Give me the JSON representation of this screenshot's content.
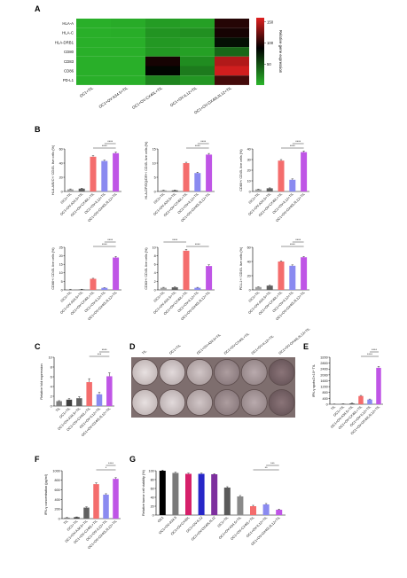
{
  "panel_letters": [
    "A",
    "B",
    "C",
    "D",
    "E",
    "F",
    "G"
  ],
  "colors": {
    "tumor": "#7f7f7f",
    "til": "#404040",
    "oc1_til": "#a0a0a0",
    "ov_a34": "#606060",
    "ov_cx40l": "#f46d6d",
    "ov_il12": "#8a8af0",
    "ov_combo": "#bf55e6",
    "heat_low": "#2ab52a",
    "heat_high": "#e02020",
    "heat_mid": "#000000"
  },
  "chart_data": [
    {
      "id": "A",
      "type": "heatmap",
      "rows": [
        "HLA-A",
        "HLA-C",
        "HLA-DRB1",
        "CD80",
        "CD83",
        "CD86",
        "PD-L1"
      ],
      "columns": [
        "OC1+TIL",
        "OC1+OV-A34.5+TIL",
        "OC1+OV-CX40L+TIL",
        "OC1+OV-IL12+TIL",
        "OC1+OV-OX40L/IL12+TIL"
      ],
      "values": [
        [
          3,
          5,
          12,
          10,
          100
        ],
        [
          3,
          4,
          16,
          18,
          95
        ],
        [
          3,
          3,
          14,
          12,
          80
        ],
        [
          3,
          3,
          14,
          10,
          38
        ],
        [
          3,
          3,
          95,
          20,
          145
        ],
        [
          3,
          3,
          85,
          28,
          155
        ],
        [
          3,
          3,
          24,
          15,
          110
        ]
      ],
      "colorbar_label": "Relative gene expression",
      "colorbar_ticks": [
        "150",
        "100",
        "50"
      ],
      "zlim": [
        0,
        160
      ]
    },
    {
      "id": "B1",
      "type": "bar",
      "ylabel": "HLA-A/B/C+/ CD45- live cells (%)",
      "categories": [
        "OC1+TIL",
        "OC1+OV-A34.5+TIL",
        "OC1+OV-CX40L+TIL",
        "OC1+OV-IL12+TIL",
        "OC1+OV-OX40L/IL12+TIL"
      ],
      "values": [
        3,
        4,
        49,
        43,
        54
      ],
      "errors": [
        0.6,
        0.6,
        1.5,
        1.2,
        1.5
      ],
      "ylim": [
        0,
        60
      ],
      "yticks": [
        0,
        20,
        40,
        60
      ],
      "sig": [
        "****",
        "****"
      ]
    },
    {
      "id": "B2",
      "type": "bar",
      "ylabel": "HLA-DP/DQ/DR+/ CD45- live cells (%)",
      "categories": [
        "OC1+TIL",
        "OC1+OV-A34.5+TIL",
        "OC1+OV-CX40L+TIL",
        "OC1+OV-IL12+TIL",
        "OC1+OV-OX40L/IL12+TIL"
      ],
      "values": [
        0.4,
        0.4,
        10,
        6.5,
        13
      ],
      "errors": [
        0.1,
        0.1,
        0.3,
        0.3,
        0.4
      ],
      "ylim": [
        0,
        15
      ],
      "yticks": [
        0,
        5,
        10,
        15
      ],
      "sig": [
        "****",
        "****"
      ]
    },
    {
      "id": "B3",
      "type": "bar",
      "ylabel": "CD80+/ CD45- live cells (%)",
      "categories": [
        "OC1+TIL",
        "OC1+OV-A34.5+TIL",
        "OC1+OV-CX40L+TIL",
        "OC1+OV-IL12+TIL",
        "OC1+OV-OX40L/IL12+TIL"
      ],
      "values": [
        2,
        3,
        29,
        11,
        37
      ],
      "errors": [
        0.3,
        0.4,
        1,
        0.8,
        1
      ],
      "ylim": [
        0,
        40
      ],
      "yticks": [
        0,
        10,
        20,
        30,
        40
      ],
      "sig": [
        "****",
        "****"
      ]
    },
    {
      "id": "B4",
      "type": "bar",
      "ylabel": "CD86+/ CD45- live cells (%)",
      "categories": [
        "OC1+TIL",
        "OC1+OV-A34.5+TIL",
        "OC1+OV-CX40L+TIL",
        "OC1+OV-IL12+TIL",
        "OC1+OV-OX40L/IL12+TIL"
      ],
      "values": [
        0.3,
        0.3,
        6.5,
        1.2,
        19
      ],
      "errors": [
        0.1,
        0.1,
        0.3,
        0.1,
        0.6
      ],
      "ylim": [
        0,
        25
      ],
      "yticks": [
        0,
        5,
        10,
        15,
        20,
        25
      ],
      "sig": [
        "****",
        "****"
      ]
    },
    {
      "id": "B5",
      "type": "bar",
      "ylabel": "CD83+/ CD45- live cells (%)",
      "categories": [
        "OC1+TIL",
        "OC1+OV-A34.5+TIL",
        "OC1+OV-CX40L+TIL",
        "OC1+OV-IL12+TIL",
        "OC1+OV-OX40L/IL12+TIL"
      ],
      "values": [
        0.5,
        0.6,
        9.2,
        0.5,
        5.6
      ],
      "errors": [
        0.1,
        0.1,
        0.3,
        0.1,
        0.3
      ],
      "ylim": [
        0,
        10
      ],
      "yticks": [
        0,
        2,
        4,
        6,
        8,
        10
      ],
      "sig": [
        "****",
        "****"
      ]
    },
    {
      "id": "B6",
      "type": "bar",
      "ylabel": "PD-L1+/ CD45- live cells (%)",
      "categories": [
        "OC1+TIL",
        "OC1+OV-A34.5+TIL",
        "OC1+OV-CX40L+TIL",
        "OC1+OV-IL12+TIL",
        "OC1+OV-OX40L/IL12+TIL"
      ],
      "values": [
        4,
        6,
        40,
        34,
        46
      ],
      "errors": [
        0.4,
        0.5,
        1,
        1.2,
        1
      ],
      "ylim": [
        0,
        60
      ],
      "yticks": [
        0,
        20,
        40,
        60
      ],
      "sig": [
        "****",
        "****"
      ]
    },
    {
      "id": "C",
      "type": "bar",
      "ylabel": "Relative fold expression",
      "categories": [
        "TIL",
        "OC1+TIL",
        "OC1+OV-A34.5+TIL",
        "OC1+OV-CX40L+TIL",
        "OC1+OV-IL12+TIL",
        "OC1+OV-OX40L/IL12+TIL"
      ],
      "values": [
        1,
        1.3,
        1.6,
        4.9,
        2.4,
        6.1
      ],
      "errors": [
        0.1,
        0.2,
        0.3,
        0.7,
        0.4,
        0.7
      ],
      "ylim": [
        0,
        10
      ],
      "yticks": [
        0,
        2,
        4,
        6,
        8,
        10
      ],
      "sig": [
        "***",
        "****"
      ]
    },
    {
      "id": "E",
      "type": "bar",
      "ylabel": "IFN-γ spots/2×10⁴ TIL",
      "categories": [
        "TIL",
        "OC1+TIL",
        "OC1+OV-A34.5+TIL",
        "OC1+OV-CX40L+TIL",
        "OC1+OV-IL12+TIL",
        "OC1+OV-OX40L/IL12+TIL"
      ],
      "values": [
        10,
        20,
        60,
        560,
        320,
        2480
      ],
      "errors": [
        5,
        8,
        15,
        40,
        35,
        90
      ],
      "ylim": [
        0,
        3200
      ],
      "yticks": [
        0,
        400,
        800,
        1200,
        1600,
        2000,
        2400,
        2800,
        3200
      ],
      "sig": [
        "****",
        "****"
      ]
    },
    {
      "id": "F",
      "type": "bar",
      "ylabel": "IFN-γ concentration (pg/ml)",
      "categories": [
        "TIL",
        "OC1+TIL",
        "OC1+OV-A34.5+TIL",
        "OC1+OV-CX40L+TIL",
        "OC1+OV-IL12+TIL",
        "OC1+OV-OX40L/IL12+TIL"
      ],
      "values": [
        20,
        30,
        230,
        720,
        500,
        830
      ],
      "errors": [
        5,
        6,
        15,
        25,
        20,
        25
      ],
      "ylim": [
        0,
        1000
      ],
      "yticks": [
        0,
        200,
        400,
        600,
        800,
        1000
      ],
      "sig": [
        "*",
        "****"
      ]
    },
    {
      "id": "G",
      "type": "bar",
      "ylabel": "Relative tumor cell viability (%)",
      "categories": [
        "OC1",
        "OC1+OV-A34.5",
        "OC1+OV-CX40L",
        "OC1+OV-IL12",
        "OC1+OV-OX40L/IL12",
        "OC1+TIL",
        "OC1+OV-A34.5+TIL",
        "OC1+OV-CX40L+TIL",
        "OC1+OV-IL12+TIL",
        "OC1+OV-OX40L/IL12+TIL"
      ],
      "values": [
        100,
        95,
        93,
        93,
        92,
        62,
        42,
        20,
        24,
        12
      ],
      "errors": [
        1.5,
        1.5,
        1.5,
        1.5,
        1.5,
        2,
        2,
        2,
        2,
        1.5
      ],
      "ylim": [
        0,
        100
      ],
      "yticks": [
        0,
        20,
        40,
        60,
        80,
        100
      ],
      "sig": [
        "**",
        "***"
      ]
    }
  ],
  "well_image": {
    "labels": [
      "TIL",
      "OC1+TIL",
      "OC1+OV-A34.5+TIL",
      "OC1+OV-CX40L+TIL",
      "OC1+OV-IL12+TIL",
      "OC1+OV-OX40L/IL12+TIL"
    ],
    "density": [
      0.05,
      0.1,
      0.25,
      0.55,
      0.45,
      0.85
    ]
  }
}
